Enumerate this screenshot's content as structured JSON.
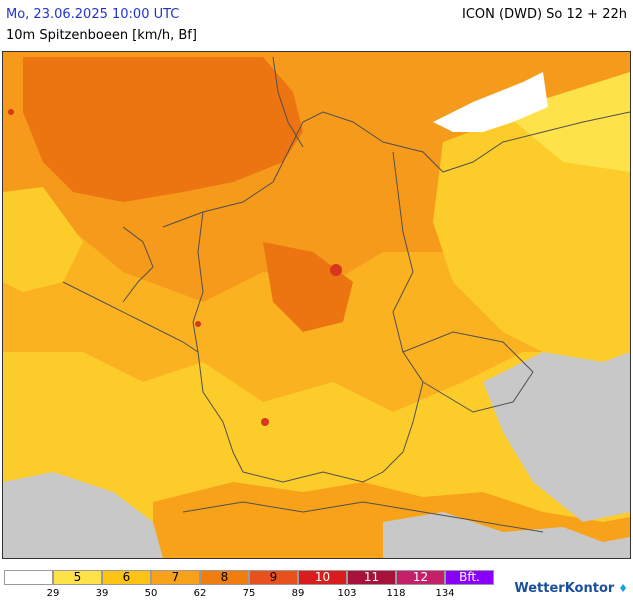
{
  "header": {
    "datetime": "Mo, 23.06.2025 10:00 UTC",
    "model": "ICON (DWD) So 12 + 22h",
    "parameter": "10m Spitzenboeen [km/h, Bf]"
  },
  "legend": {
    "labels": [
      "",
      "5",
      "6",
      "7",
      "8",
      "9",
      "10",
      "11",
      "12",
      "Bft."
    ],
    "colors": [
      "#ffffff",
      "#fde24a",
      "#fcc314",
      "#f8a21a",
      "#f07d0d",
      "#e8501c",
      "#d91d1f",
      "#a8123a",
      "#c4206a",
      "#8a00ff"
    ],
    "ticks": [
      "29",
      "39",
      "50",
      "62",
      "75",
      "89",
      "103",
      "118",
      "134"
    ]
  },
  "branding": {
    "name": "WetterKontor"
  },
  "map": {
    "colors": {
      "north_sea_dark": "#ec7411",
      "orange_mid": "#f59a1b",
      "orange_light": "#fbb221",
      "yellow": "#fccd2a",
      "yellow_light": "#fde24a",
      "gray_missing": "#c8c8c8",
      "white_calm": "#ffffff",
      "red": "#d8361f",
      "border": "#505050"
    }
  }
}
